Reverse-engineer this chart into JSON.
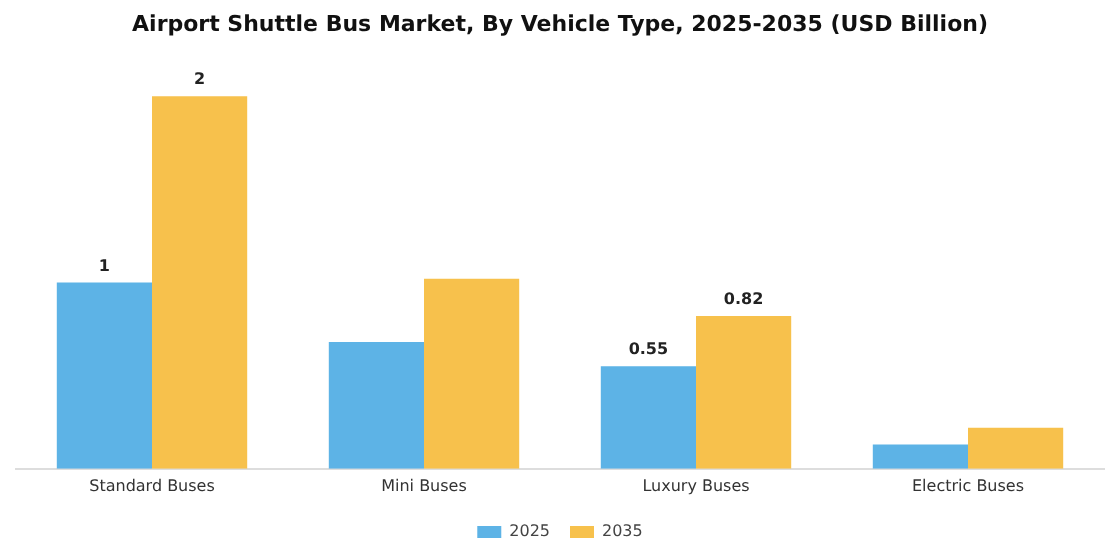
{
  "chart_data": {
    "type": "bar",
    "title": "Airport Shuttle Bus Market, By Vehicle Type, 2025-2035 (USD Billion)",
    "categories": [
      "Standard Buses",
      "Mini Buses",
      "Luxury Buses",
      "Electric Buses"
    ],
    "series": [
      {
        "name": "2025",
        "color": "#5db3e6",
        "values": [
          1,
          0.68,
          0.55,
          0.13
        ],
        "value_labels": [
          "1",
          null,
          "0.55",
          null
        ]
      },
      {
        "name": "2035",
        "color": "#f7c14c",
        "values": [
          2,
          1.02,
          0.82,
          0.22
        ],
        "value_labels": [
          "2",
          null,
          "0.82",
          null
        ]
      }
    ],
    "legend": "bottom",
    "grid": false
  }
}
